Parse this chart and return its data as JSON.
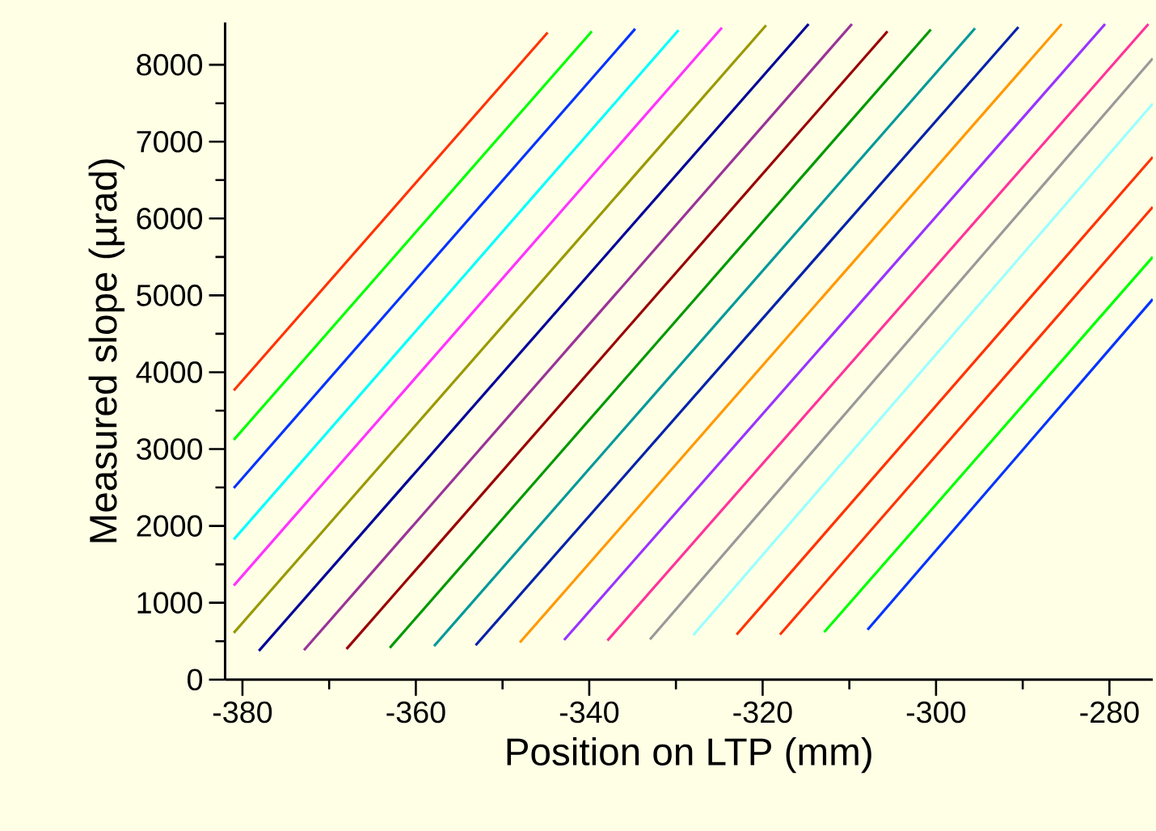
{
  "chart_data": {
    "type": "line",
    "xlabel": "Position on LTP (mm)",
    "ylabel": "Measured slope (µrad)",
    "xlim": [
      -382,
      -275
    ],
    "ylim": [
      0,
      8550
    ],
    "xticks": [
      -380,
      -360,
      -340,
      -320,
      -300,
      -280
    ],
    "yticks": [
      0,
      1000,
      2000,
      3000,
      4000,
      5000,
      6000,
      7000,
      8000
    ],
    "marker": "none",
    "line_style": "solid",
    "grid": false,
    "series": [
      {
        "color": "#ff3300",
        "x": [
          -381,
          -344.8
        ],
        "values": [
          3763,
          8420
        ]
      },
      {
        "color": "#00ff00",
        "x": [
          -381,
          -339.7
        ],
        "values": [
          3120,
          8436
        ]
      },
      {
        "color": "#0033ff",
        "x": [
          -381,
          -334.7
        ],
        "values": [
          2493,
          8468
        ]
      },
      {
        "color": "#00ffff",
        "x": [
          -381,
          -329.7
        ],
        "values": [
          1823,
          8451
        ]
      },
      {
        "color": "#ff33ff",
        "x": [
          -381,
          -324.7
        ],
        "values": [
          1224,
          8483
        ]
      },
      {
        "color": "#999900",
        "x": [
          -381,
          -319.6
        ],
        "values": [
          609,
          8514
        ]
      },
      {
        "color": "#000099",
        "x": [
          -378.1,
          -314.7
        ],
        "values": [
          375,
          8530
        ]
      },
      {
        "color": "#993399",
        "x": [
          -372.9,
          -309.7
        ],
        "values": [
          383,
          8530
        ]
      },
      {
        "color": "#990000",
        "x": [
          -368.0,
          -305.6
        ],
        "values": [
          398,
          8436
        ]
      },
      {
        "color": "#009900",
        "x": [
          -363.0,
          -300.6
        ],
        "values": [
          414,
          8460
        ]
      },
      {
        "color": "#009999",
        "x": [
          -357.9,
          -295.5
        ],
        "values": [
          437,
          8475
        ]
      },
      {
        "color": "#0022aa",
        "x": [
          -353.1,
          -290.5
        ],
        "values": [
          446,
          8490
        ]
      },
      {
        "color": "#ff9900",
        "x": [
          -348.0,
          -285.5
        ],
        "values": [
          483,
          8530
        ]
      },
      {
        "color": "#9933ff",
        "x": [
          -342.9,
          -280.5
        ],
        "values": [
          515,
          8530
        ]
      },
      {
        "color": "#ff3399",
        "x": [
          -337.9,
          -275.5
        ],
        "values": [
          509,
          8530
        ]
      },
      {
        "color": "#999999",
        "x": [
          -333.0,
          -275
        ],
        "values": [
          523,
          8083
        ]
      },
      {
        "color": "#99ffff",
        "x": [
          -328.0,
          -275
        ],
        "values": [
          578,
          7495
        ]
      },
      {
        "color": "#ff3300",
        "x": [
          -323.0,
          -275
        ],
        "values": [
          586,
          6800
        ]
      },
      {
        "color": "#ff3300",
        "x": [
          -318.0,
          -275
        ],
        "values": [
          586,
          6150
        ]
      },
      {
        "color": "#00ff00",
        "x": [
          -312.9,
          -275
        ],
        "values": [
          617,
          5500
        ]
      },
      {
        "color": "#0033ff",
        "x": [
          -307.9,
          -275
        ],
        "values": [
          649,
          4950
        ]
      }
    ]
  }
}
